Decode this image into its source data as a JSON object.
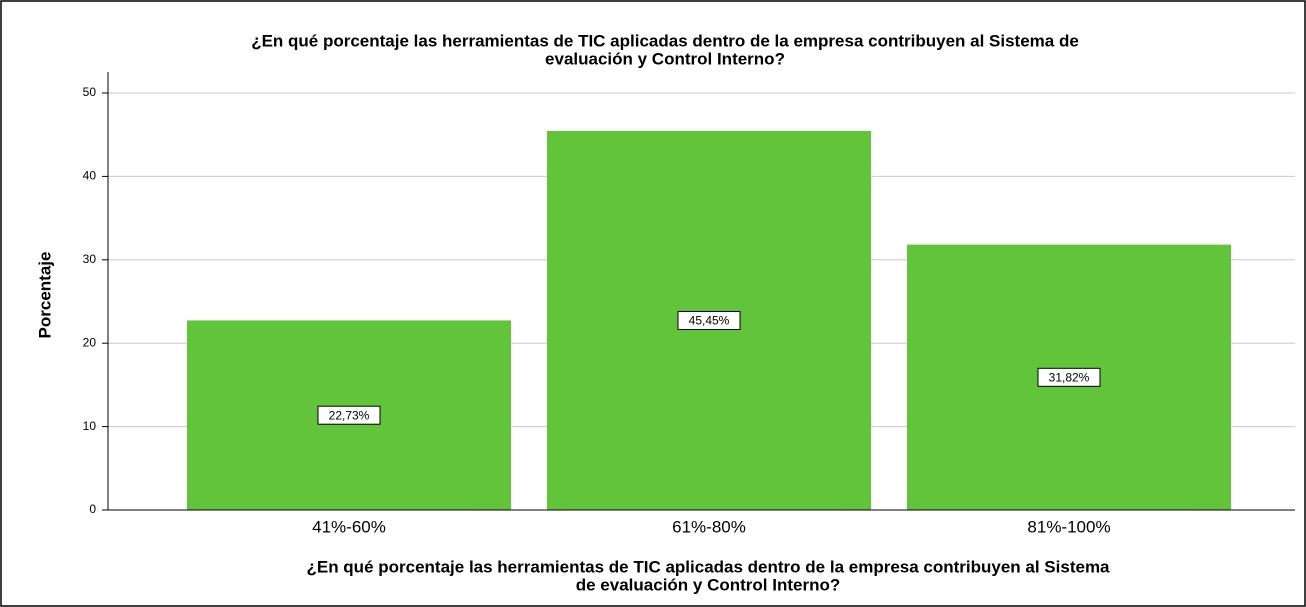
{
  "chart_data": {
    "type": "bar",
    "title": [
      "¿En qué porcentaje las herramientas de TIC aplicadas dentro de la empresa contribuyen al Sistema de",
      "evaluación y Control Interno?"
    ],
    "x_label": [
      "¿En qué porcentaje las herramientas de TIC aplicadas dentro de la empresa contribuyen al Sistema",
      "de evaluación y Control Interno?"
    ],
    "y_label": "Porcentaje",
    "categories": [
      "41%-60%",
      "61%-80%",
      "81%-100%"
    ],
    "values": [
      22.73,
      45.45,
      31.82
    ],
    "value_labels": [
      "22,73%",
      "45,45%",
      "31,82%"
    ],
    "color": "#62c43a",
    "ylim": [
      0,
      50
    ],
    "yticks": [
      0,
      10,
      20,
      30,
      40,
      50
    ],
    "grid": true
  }
}
